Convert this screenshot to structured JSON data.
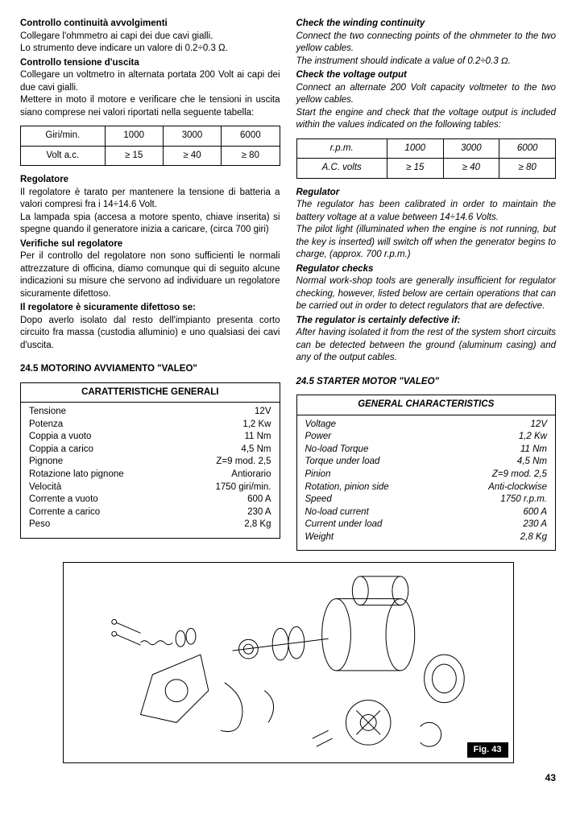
{
  "left": {
    "h1": "Controllo continuità avvolgimenti",
    "p1a": "Collegare l'ohmmetro ai capi dei due cavi gialli.",
    "p1b": "Lo strumento deve indicare un valore di 0.2÷0.3 Ω.",
    "h2": "Controllo tensione d'uscita",
    "p2a": "Collegare un voltmetro in alternata portata 200 Volt ai capi dei due cavi gialli.",
    "p2b": "Mettere in moto il motore e verificare che le tensioni in uscita siano comprese nei valori riportati nella seguente tabella:",
    "table1": {
      "r1": [
        "Giri/min.",
        "1000",
        "3000",
        "6000"
      ],
      "r2": [
        "Volt a.c.",
        "≥ 15",
        "≥ 40",
        "≥ 80"
      ]
    },
    "h3": "Regolatore",
    "p3a": "Il regolatore è tarato per mantenere la tensione di batteria a valori compresi fra i 14÷14.6 Volt.",
    "p3b": "La lampada spia (accesa a motore spento, chiave inserita) si spegne quando il generatore inizia a caricare, (circa 700 giri)",
    "h4": "Verifiche sul regolatore",
    "p4": "Per il controllo del regolatore non sono sufficienti le normali attrezzature di officina, diamo comunque qui di seguito alcune indicazioni su misure che servono ad individuare un regolatore sicuramente difettoso.",
    "h5": "Il regolatore è sicuramente difettoso se:",
    "p5": "Dopo averlo isolato dal resto dell'impianto presenta corto circuito fra massa (custodia alluminio) e uno qualsiasi dei cavi d'uscita.",
    "sec": "24.5    MOTORINO AVVIAMENTO \"VALEO\"",
    "char_title": "CARATTERISTICHE GENERALI",
    "char": [
      [
        "Tensione",
        "12V"
      ],
      [
        "Potenza",
        "1,2 Kw"
      ],
      [
        "Coppia a vuoto",
        "11 Nm"
      ],
      [
        "Coppia a carico",
        "4,5 Nm"
      ],
      [
        "Pignone",
        "Z=9 mod. 2,5"
      ],
      [
        "Rotazione lato pignone",
        "Antiorario"
      ],
      [
        "Velocità",
        "1750 giri/min."
      ],
      [
        "Corrente a vuoto",
        "600 A"
      ],
      [
        "Corrente a carico",
        "230 A"
      ],
      [
        "Peso",
        "2,8 Kg"
      ]
    ]
  },
  "right": {
    "h1": "Check the winding continuity",
    "p1a": "Connect the two connecting points of the ohmmeter to the two yellow cables.",
    "p1b": "The instrument should indicate a value of 0.2÷0.3 Ω.",
    "h2": "Check the voltage output",
    "p2a": "Connect an alternate 200 Volt capacity voltmeter to the two yellow cables.",
    "p2b": "Start the engine and check that the voltage output is included within the values indicated on the following tables:",
    "table1": {
      "r1": [
        "r.p.m.",
        "1000",
        "3000",
        "6000"
      ],
      "r2": [
        "A.C. volts",
        "≥ 15",
        "≥ 40",
        "≥ 80"
      ]
    },
    "h3": "Regulator",
    "p3a": "The regulator has been calibrated in order to maintain the battery voltage at a value between 14÷14.6 Volts.",
    "p3b": "The pilot light (illuminated when the engine is not running, but the key is inserted) will switch off when the generator begins to charge, (approx. 700 r.p.m.)",
    "h4": "Regulator checks",
    "p4": "Normal work-shop tools are generally insufficient for regulator checking, however, listed below are certain operations that can be carried out in order to detect regulators that are defective.",
    "h5": "The regulator is certainly defective if:",
    "p5": "After having isolated it from the rest of the system short circuits can be detected between the ground (aluminum casing) and any of the output cables.",
    "sec": "24.5    STARTER MOTOR \"VALEO\"",
    "char_title": "GENERAL CHARACTERISTICS",
    "char": [
      [
        "Voltage",
        "12V"
      ],
      [
        "Power",
        "1,2 Kw"
      ],
      [
        "No-load Torque",
        "11 Nm"
      ],
      [
        "Torque under load",
        "4,5 Nm"
      ],
      [
        "Pinion",
        "Z=9 mod. 2,5"
      ],
      [
        "Rotation, pinion side",
        "Anti-clockwise"
      ],
      [
        "Speed",
        "1750 r.p.m."
      ],
      [
        "No-load current",
        "600 A"
      ],
      [
        "Current under load",
        "230 A"
      ],
      [
        "Weight",
        "2,8 Kg"
      ]
    ]
  },
  "figure_label": "Fig. 43",
  "page_number": "43"
}
